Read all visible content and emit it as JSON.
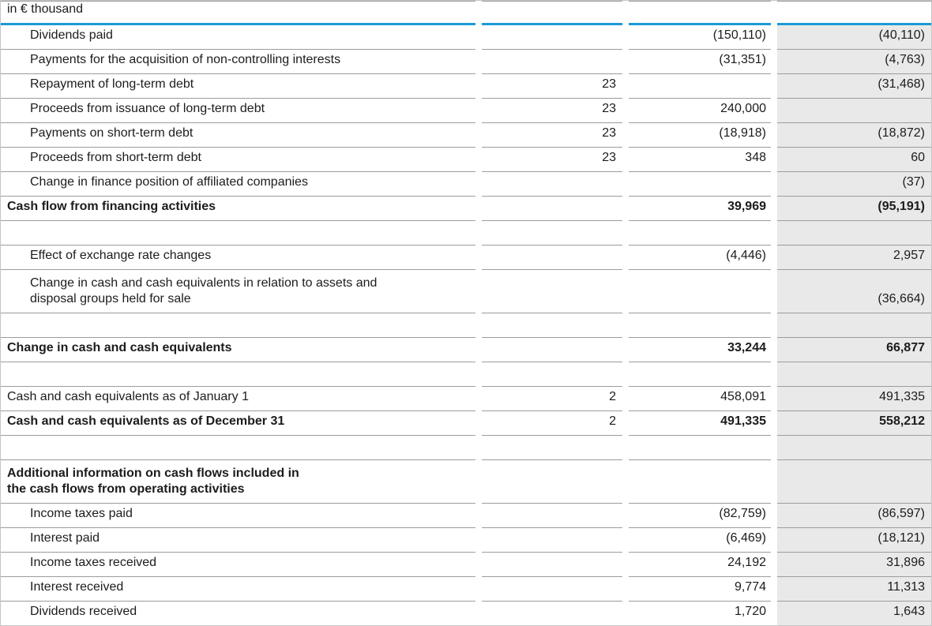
{
  "header": {
    "unit_label": "in € thousand"
  },
  "colors": {
    "accent_blue": "#1b9ad6",
    "shaded_column_bg": "#e9e9e9",
    "row_separator": "#9c9c9c",
    "bottom_border": "#6e6e6e",
    "text": "#1c1c1c"
  },
  "table": {
    "columns": [
      "label",
      "note",
      "current_year_value",
      "prior_year_value"
    ],
    "rows": [
      {
        "type": "data",
        "indent": true,
        "bold": false,
        "tall": false,
        "label": "Dividends paid",
        "note": "",
        "current": "(150,110)",
        "prior": "(40,110)"
      },
      {
        "type": "data",
        "indent": true,
        "bold": false,
        "tall": false,
        "label": "Payments for the acquisition of non-controlling interests",
        "note": "",
        "current": "(31,351)",
        "prior": "(4,763)"
      },
      {
        "type": "data",
        "indent": true,
        "bold": false,
        "tall": false,
        "label": "Repayment of long-term debt",
        "note": "23",
        "current": "",
        "prior": "(31,468)"
      },
      {
        "type": "data",
        "indent": true,
        "bold": false,
        "tall": false,
        "label": "Proceeds from issuance of long-term debt",
        "note": "23",
        "current": "240,000",
        "prior": ""
      },
      {
        "type": "data",
        "indent": true,
        "bold": false,
        "tall": false,
        "label": "Payments on short-term debt",
        "note": "23",
        "current": "(18,918)",
        "prior": "(18,872)"
      },
      {
        "type": "data",
        "indent": true,
        "bold": false,
        "tall": false,
        "label": "Proceeds from short-term debt",
        "note": "23",
        "current": "348",
        "prior": "60"
      },
      {
        "type": "data",
        "indent": true,
        "bold": false,
        "tall": false,
        "label": "Change in finance position of affiliated companies",
        "note": "",
        "current": "",
        "prior": "(37)"
      },
      {
        "type": "data",
        "indent": false,
        "bold": true,
        "tall": false,
        "label": "Cash flow from financing activities",
        "note": "",
        "current": "39,969",
        "prior": "(95,191)"
      },
      {
        "type": "spacer",
        "indent": false,
        "bold": false,
        "tall": false,
        "label": "",
        "note": "",
        "current": "",
        "prior": ""
      },
      {
        "type": "data",
        "indent": true,
        "bold": false,
        "tall": false,
        "label": "Effect of exchange rate changes",
        "note": "",
        "current": "(4,446)",
        "prior": "2,957"
      },
      {
        "type": "data",
        "indent": true,
        "bold": false,
        "tall": true,
        "label": "Change in cash and cash equivalents in relation to assets and\ndisposal groups held for sale",
        "note": "",
        "current": "",
        "prior": "(36,664)"
      },
      {
        "type": "spacer",
        "indent": false,
        "bold": false,
        "tall": false,
        "label": "",
        "note": "",
        "current": "",
        "prior": ""
      },
      {
        "type": "data",
        "indent": false,
        "bold": true,
        "tall": false,
        "label": "Change in cash and cash equivalents",
        "note": "",
        "current": "33,244",
        "prior": "66,877"
      },
      {
        "type": "spacer",
        "indent": false,
        "bold": false,
        "tall": false,
        "label": "",
        "note": "",
        "current": "",
        "prior": ""
      },
      {
        "type": "data",
        "indent": false,
        "bold": false,
        "tall": false,
        "label": "Cash and cash equivalents as of January 1",
        "note": "2",
        "current": "458,091",
        "prior": "491,335"
      },
      {
        "type": "data",
        "indent": false,
        "bold": true,
        "tall": false,
        "label": "Cash and cash equivalents as of December 31",
        "note": "2",
        "current": "491,335",
        "prior": "558,212"
      },
      {
        "type": "spacer",
        "indent": false,
        "bold": false,
        "tall": false,
        "label": "",
        "note": "",
        "current": "",
        "prior": ""
      },
      {
        "type": "data",
        "indent": false,
        "bold": true,
        "tall": true,
        "label": "Additional information on cash flows included in\nthe cash flows from operating activities",
        "note": "",
        "current": "",
        "prior": ""
      },
      {
        "type": "data",
        "indent": true,
        "bold": false,
        "tall": false,
        "label": "Income taxes paid",
        "note": "",
        "current": "(82,759)",
        "prior": "(86,597)"
      },
      {
        "type": "data",
        "indent": true,
        "bold": false,
        "tall": false,
        "label": "Interest paid",
        "note": "",
        "current": "(6,469)",
        "prior": "(18,121)"
      },
      {
        "type": "data",
        "indent": true,
        "bold": false,
        "tall": false,
        "label": "Income taxes received",
        "note": "",
        "current": "24,192",
        "prior": "31,896"
      },
      {
        "type": "data",
        "indent": true,
        "bold": false,
        "tall": false,
        "label": "Interest received",
        "note": "",
        "current": "9,774",
        "prior": "11,313"
      },
      {
        "type": "data",
        "indent": true,
        "bold": false,
        "tall": false,
        "label": "Dividends received",
        "note": "",
        "current": "1,720",
        "prior": "1,643"
      }
    ]
  }
}
